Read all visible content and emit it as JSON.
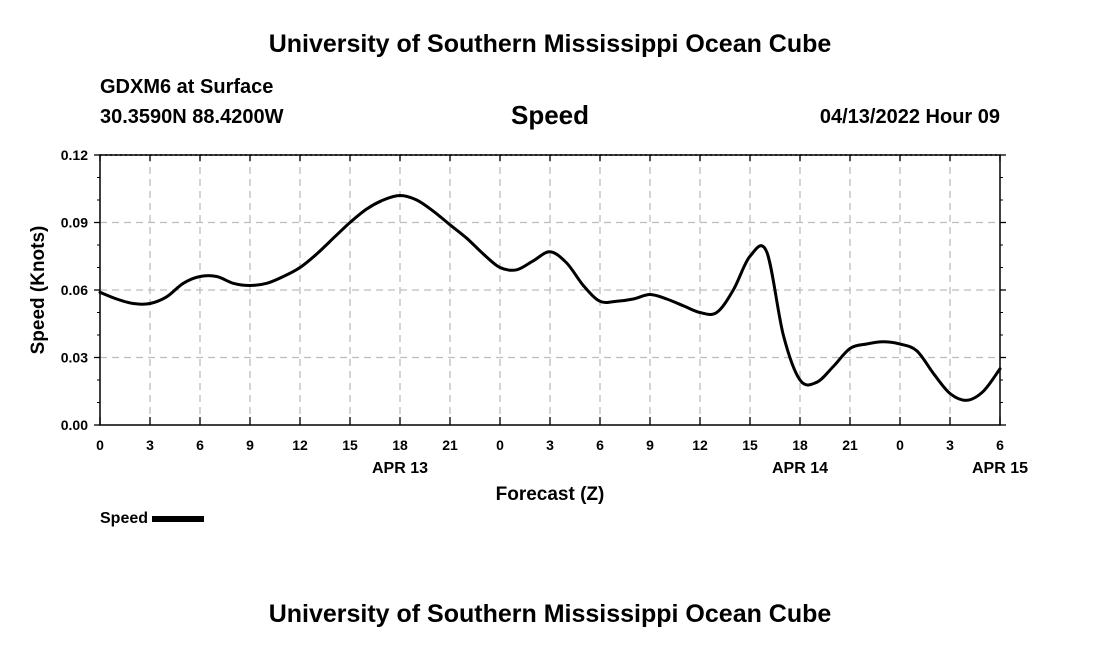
{
  "header": {
    "title_top": "University of Southern Mississippi Ocean Cube",
    "station_line": "GDXM6 at Surface",
    "coords_line": "30.3590N  88.4200W",
    "date_line": "04/13/2022 Hour 09",
    "title_bottom": "University of Southern Mississippi Ocean Cube"
  },
  "legend": {
    "label": "Speed"
  },
  "chart_data": {
    "type": "line",
    "title": "Speed",
    "xlabel": "Forecast (Z)",
    "ylabel": "Speed (Knots)",
    "ylim": [
      0,
      0.12
    ],
    "yticks": [
      "0.00",
      "0.03",
      "0.06",
      "0.09",
      "0.12"
    ],
    "xlim_hours_from_apr13_00z": [
      0,
      54
    ],
    "xticks": [
      "0",
      "3",
      "6",
      "9",
      "12",
      "15",
      "18",
      "21",
      "0",
      "3",
      "6",
      "9",
      "12",
      "15",
      "18",
      "21",
      "0",
      "3",
      "6"
    ],
    "date_labels": [
      {
        "label": "APR 13",
        "tick_index": 6
      },
      {
        "label": "APR 14",
        "tick_index": 14
      },
      {
        "label": "APR 15",
        "tick_index": 18
      }
    ],
    "grid": true,
    "legend_position": "bottom-left",
    "series": [
      {
        "name": "Speed",
        "x": [
          0,
          1,
          2,
          3,
          4,
          5,
          6,
          7,
          8,
          9,
          10,
          11,
          12,
          13,
          14,
          15,
          16,
          17,
          18,
          19,
          20,
          21,
          22,
          23,
          24,
          25,
          26,
          27,
          28,
          29,
          30,
          31,
          32,
          33,
          34,
          35,
          36,
          37,
          38,
          39,
          40,
          41,
          42,
          43,
          44,
          45,
          46,
          47,
          48,
          49,
          50,
          51,
          52,
          53,
          54
        ],
        "y": [
          0.059,
          0.056,
          0.054,
          0.054,
          0.057,
          0.063,
          0.066,
          0.066,
          0.063,
          0.062,
          0.063,
          0.066,
          0.07,
          0.076,
          0.083,
          0.09,
          0.096,
          0.1,
          0.102,
          0.1,
          0.095,
          0.089,
          0.083,
          0.076,
          0.07,
          0.069,
          0.073,
          0.077,
          0.072,
          0.062,
          0.055,
          0.055,
          0.056,
          0.058,
          0.056,
          0.053,
          0.05,
          0.05,
          0.06,
          0.075,
          0.077,
          0.04,
          0.02,
          0.019,
          0.026,
          0.034,
          0.036,
          0.037,
          0.036,
          0.033,
          0.023,
          0.014,
          0.011,
          0.015,
          0.025
        ]
      }
    ]
  }
}
